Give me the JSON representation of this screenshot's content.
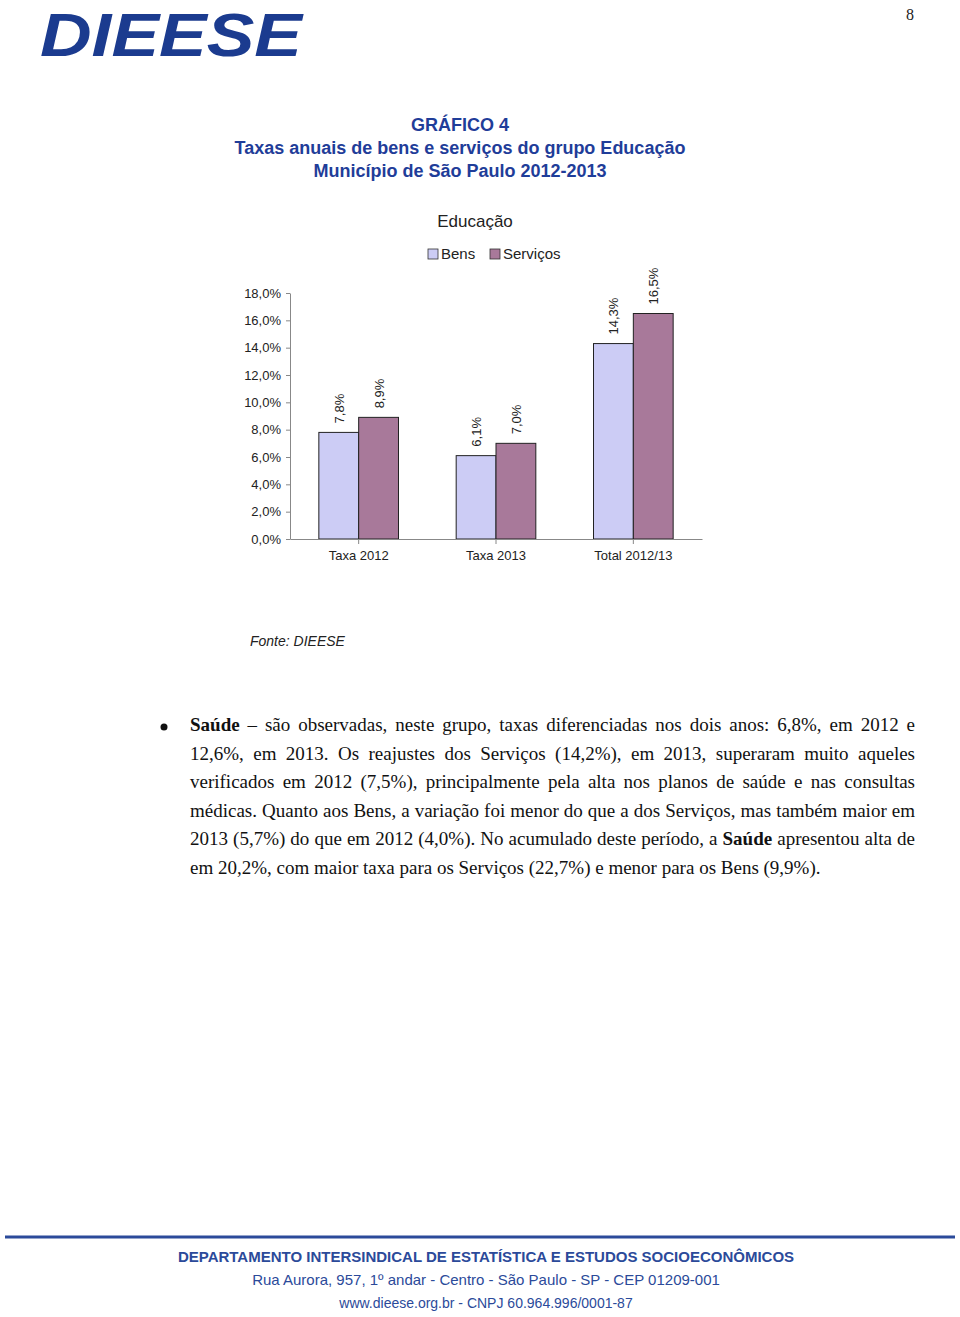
{
  "page_number": "8",
  "logo": "DIEESE",
  "heading": [
    "GRÁFICO 4",
    "Taxas anuais de bens e serviços do grupo Educação",
    "Município de São Paulo 2012-2013"
  ],
  "chart_data": {
    "type": "bar",
    "title": "Educação",
    "categories": [
      "Taxa 2012",
      "Taxa 2013",
      "Total 2012/13"
    ],
    "series": [
      {
        "name": "Bens",
        "color": "#ccccf5",
        "values": [
          7.8,
          6.1,
          14.3
        ],
        "value_labels": [
          "7,8%",
          "6,1%",
          "14,3%"
        ]
      },
      {
        "name": "Serviços",
        "color": "#a8799a",
        "values": [
          8.9,
          7.0,
          16.5
        ],
        "value_labels": [
          "8,9%",
          "7,0%",
          "16,5%"
        ]
      }
    ],
    "ylim": [
      0,
      18
    ],
    "yticks": [
      {
        "value": 0,
        "label": "0,0%"
      },
      {
        "value": 2,
        "label": "2,0%"
      },
      {
        "value": 4,
        "label": "4,0%"
      },
      {
        "value": 6,
        "label": "6,0%"
      },
      {
        "value": 8,
        "label": "8,0%"
      },
      {
        "value": 10,
        "label": "10,0%"
      },
      {
        "value": 12,
        "label": "12,0%"
      },
      {
        "value": 14,
        "label": "14,0%"
      },
      {
        "value": 16,
        "label": "16,0%"
      },
      {
        "value": 18,
        "label": "18,0%"
      }
    ],
    "grid": false,
    "legend": "top",
    "data_labels": true
  },
  "source": "Fonte: DIEESE",
  "paragraph": [
    {
      "text": "Saúde",
      "bold": true
    },
    {
      "text": " – são observadas, neste grupo, taxas diferenciadas nos dois anos: 6,8%, em 2012 e 12,6%, em 2013. Os reajustes dos Serviços (14,2%), em 2013, superaram muito aqueles verificados em 2012 (7,5%), principalmente pela alta nos planos de saúde e nas consultas médicas. Quanto aos Bens, a variação foi menor do que a dos Serviços, mas também maior em 2013 (5,7%) do que em 2012 (4,0%). No acumulado deste período, a "
    },
    {
      "text": "Saúde",
      "bold": true
    },
    {
      "text": " apresentou alta de em 20,2%, com maior taxa para os Serviços (22,7%) e menor para os Bens (9,9%)."
    }
  ],
  "footer": [
    "DEPARTAMENTO INTERSINDICAL DE ESTATÍSTICA E ESTUDOS SOCIOECONÔMICOS",
    "Rua Aurora, 957, 1º andar - Centro - São Paulo - SP - CEP 01209-001",
    "www.dieese.org.br - CNPJ 60.964.996/0001-87"
  ]
}
